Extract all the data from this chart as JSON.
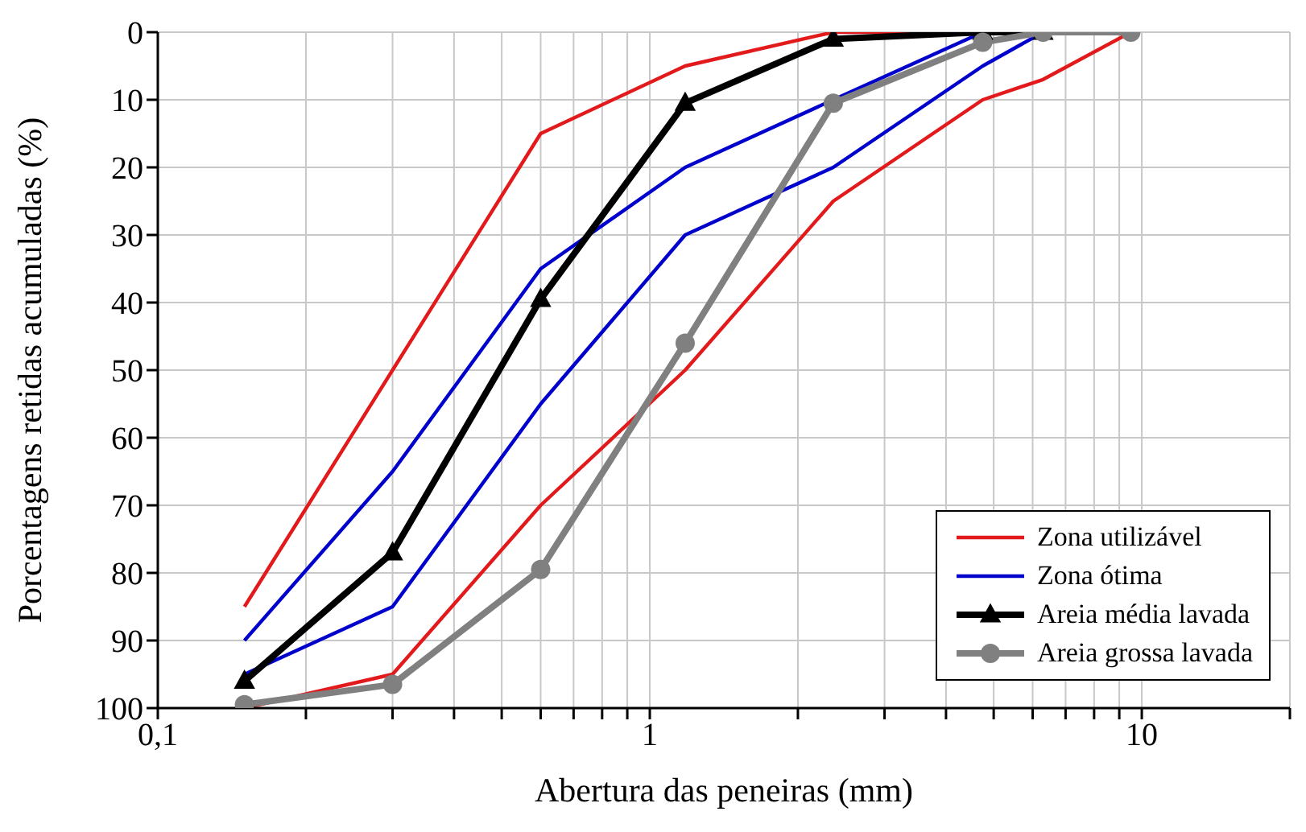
{
  "chart_data": {
    "type": "line",
    "xlabel": "Abertura das peneiras (mm)",
    "ylabel": "Porcentagens retidas acumuladas (%)",
    "log": "x",
    "grid": true,
    "legend": "bottom right",
    "x": [
      0.15,
      0.3,
      0.6,
      1.18,
      2.36,
      4.75,
      6.3,
      9.5
    ],
    "xlim": [
      0.1,
      20
    ],
    "xticks": [
      {
        "value": 0.1,
        "label": "0,1"
      },
      {
        "value": 0.2,
        "label": null
      },
      {
        "value": 0.3,
        "label": null
      },
      {
        "value": 0.4,
        "label": null
      },
      {
        "value": 0.5,
        "label": null
      },
      {
        "value": 0.6,
        "label": null
      },
      {
        "value": 0.7,
        "label": null
      },
      {
        "value": 0.8,
        "label": null
      },
      {
        "value": 0.9,
        "label": null
      },
      1,
      {
        "value": 2,
        "label": null
      },
      {
        "value": 3,
        "label": null
      },
      {
        "value": 4,
        "label": null
      },
      {
        "value": 5,
        "label": null
      },
      {
        "value": 6,
        "label": null
      },
      {
        "value": 7,
        "label": null
      },
      {
        "value": 8,
        "label": null
      },
      {
        "value": 9,
        "label": null
      },
      10,
      {
        "value": 20,
        "label": null
      }
    ],
    "ylim": [
      100,
      0
    ],
    "yticks": [
      0,
      10,
      20,
      30,
      40,
      50,
      60,
      70,
      80,
      90,
      100
    ],
    "series": [
      {
        "name": "Zona utilizável",
        "color": "#e31a1c",
        "marker": "none",
        "values": [
          85,
          50,
          15,
          5,
          0,
          0,
          0,
          0
        ]
      },
      {
        "color": "#e31a1c",
        "marker": "none",
        "values": [
          100,
          95,
          70,
          50,
          25,
          10,
          7,
          0
        ]
      },
      {
        "name": "Zona ótima",
        "color": "#0000cc",
        "marker": "none",
        "values": [
          90,
          65,
          35,
          20,
          10,
          0,
          0,
          null
        ]
      },
      {
        "color": "#0000cc",
        "marker": "none",
        "values": [
          95,
          85,
          55,
          30,
          20,
          5,
          0,
          null
        ]
      },
      {
        "name": "Areia média lavada",
        "color": "#000000",
        "marker": "triangle",
        "values": [
          96,
          77,
          39.5,
          10.5,
          1,
          0,
          0,
          null
        ]
      },
      {
        "name": "Areia grossa lavada",
        "color": "#808080",
        "marker": "circle",
        "values": [
          99.5,
          96.5,
          79.5,
          46,
          10.5,
          1.5,
          0,
          0
        ]
      }
    ]
  }
}
